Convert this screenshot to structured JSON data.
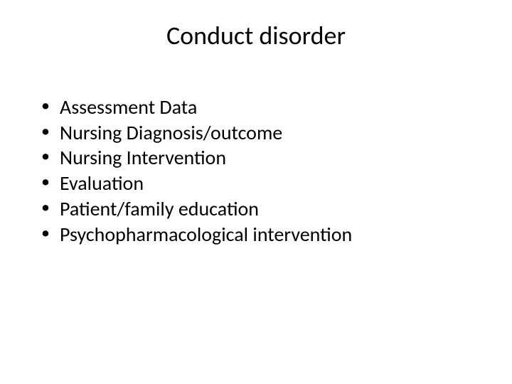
{
  "slide": {
    "title": "Conduct disorder",
    "title_fontsize": 36,
    "title_color": "#000000",
    "background_color": "#ffffff",
    "bullets": [
      "Assessment Data",
      "Nursing Diagnosis/outcome",
      "Nursing Intervention",
      "Evaluation",
      "Patient/family education",
      "Psychopharmacological intervention"
    ],
    "bullet_fontsize": 28,
    "bullet_color": "#000000",
    "font_family": "Calibri"
  }
}
